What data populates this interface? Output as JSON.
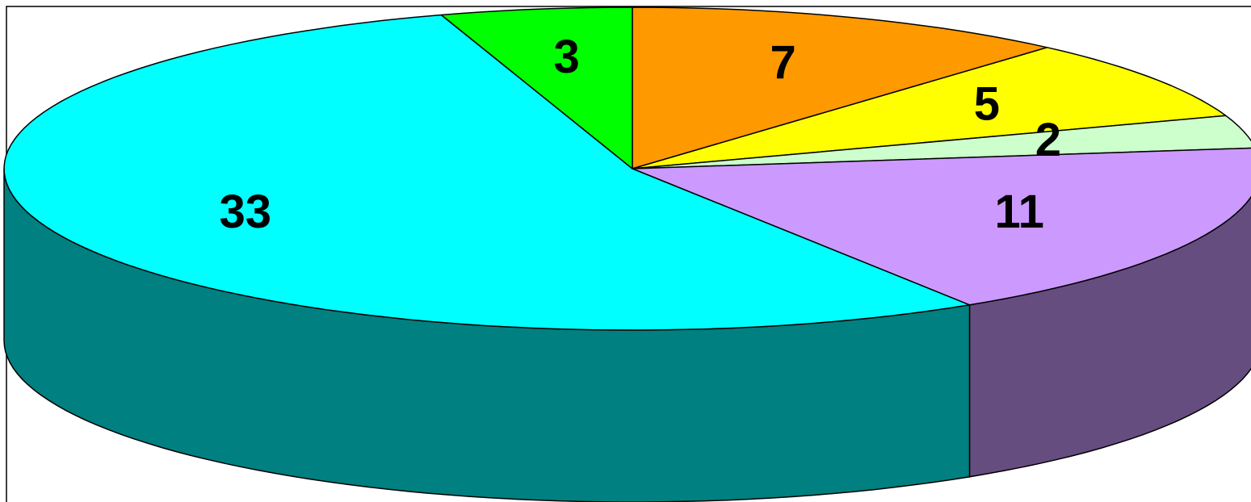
{
  "chart_data": {
    "type": "pie",
    "style": "3d",
    "title": "",
    "legend": "none",
    "slices": [
      {
        "label": "7",
        "value": 7,
        "color": "#ff9900"
      },
      {
        "label": "5",
        "value": 5,
        "color": "#ffff00"
      },
      {
        "label": "2",
        "value": 2,
        "color": "#ccffcc"
      },
      {
        "label": "11",
        "value": 11,
        "color": "#cc99ff"
      },
      {
        "label": "33",
        "value": 33,
        "color": "#00ffff"
      },
      {
        "label": "3",
        "value": 3,
        "color": "#00ff00"
      }
    ]
  }
}
